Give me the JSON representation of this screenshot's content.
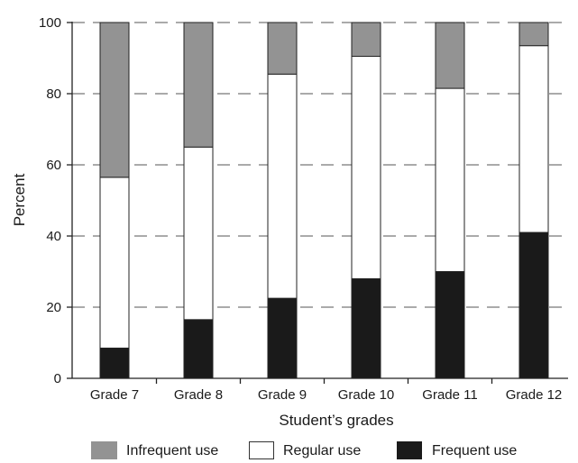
{
  "chart_data": {
    "type": "bar",
    "stacked": true,
    "title": "",
    "xlabel": "Student’s grades",
    "ylabel": "Percent",
    "ylim": [
      0,
      100
    ],
    "yticks": [
      "0",
      "20",
      "40",
      "60",
      "80",
      "100"
    ],
    "grid": "horizontal dashed",
    "legend_position": "bottom",
    "categories": [
      "Grade 7",
      "Grade 8",
      "Grade 9",
      "Grade 10",
      "Grade 11",
      "Grade 12"
    ],
    "series": [
      {
        "name": "Frequent use",
        "color": "#1a1a1a",
        "values": [
          8.5,
          16.5,
          22.5,
          28,
          30,
          41
        ]
      },
      {
        "name": "Regular use",
        "color": "#ffffff",
        "values": [
          48,
          48.5,
          63,
          62.5,
          51.5,
          52.5
        ]
      },
      {
        "name": "Infrequent use",
        "color": "#939393",
        "values": [
          43.5,
          35,
          14.5,
          9.5,
          18.5,
          6.5
        ]
      }
    ],
    "legend": [
      "Infrequent use",
      "Regular use",
      "Frequent use"
    ]
  }
}
